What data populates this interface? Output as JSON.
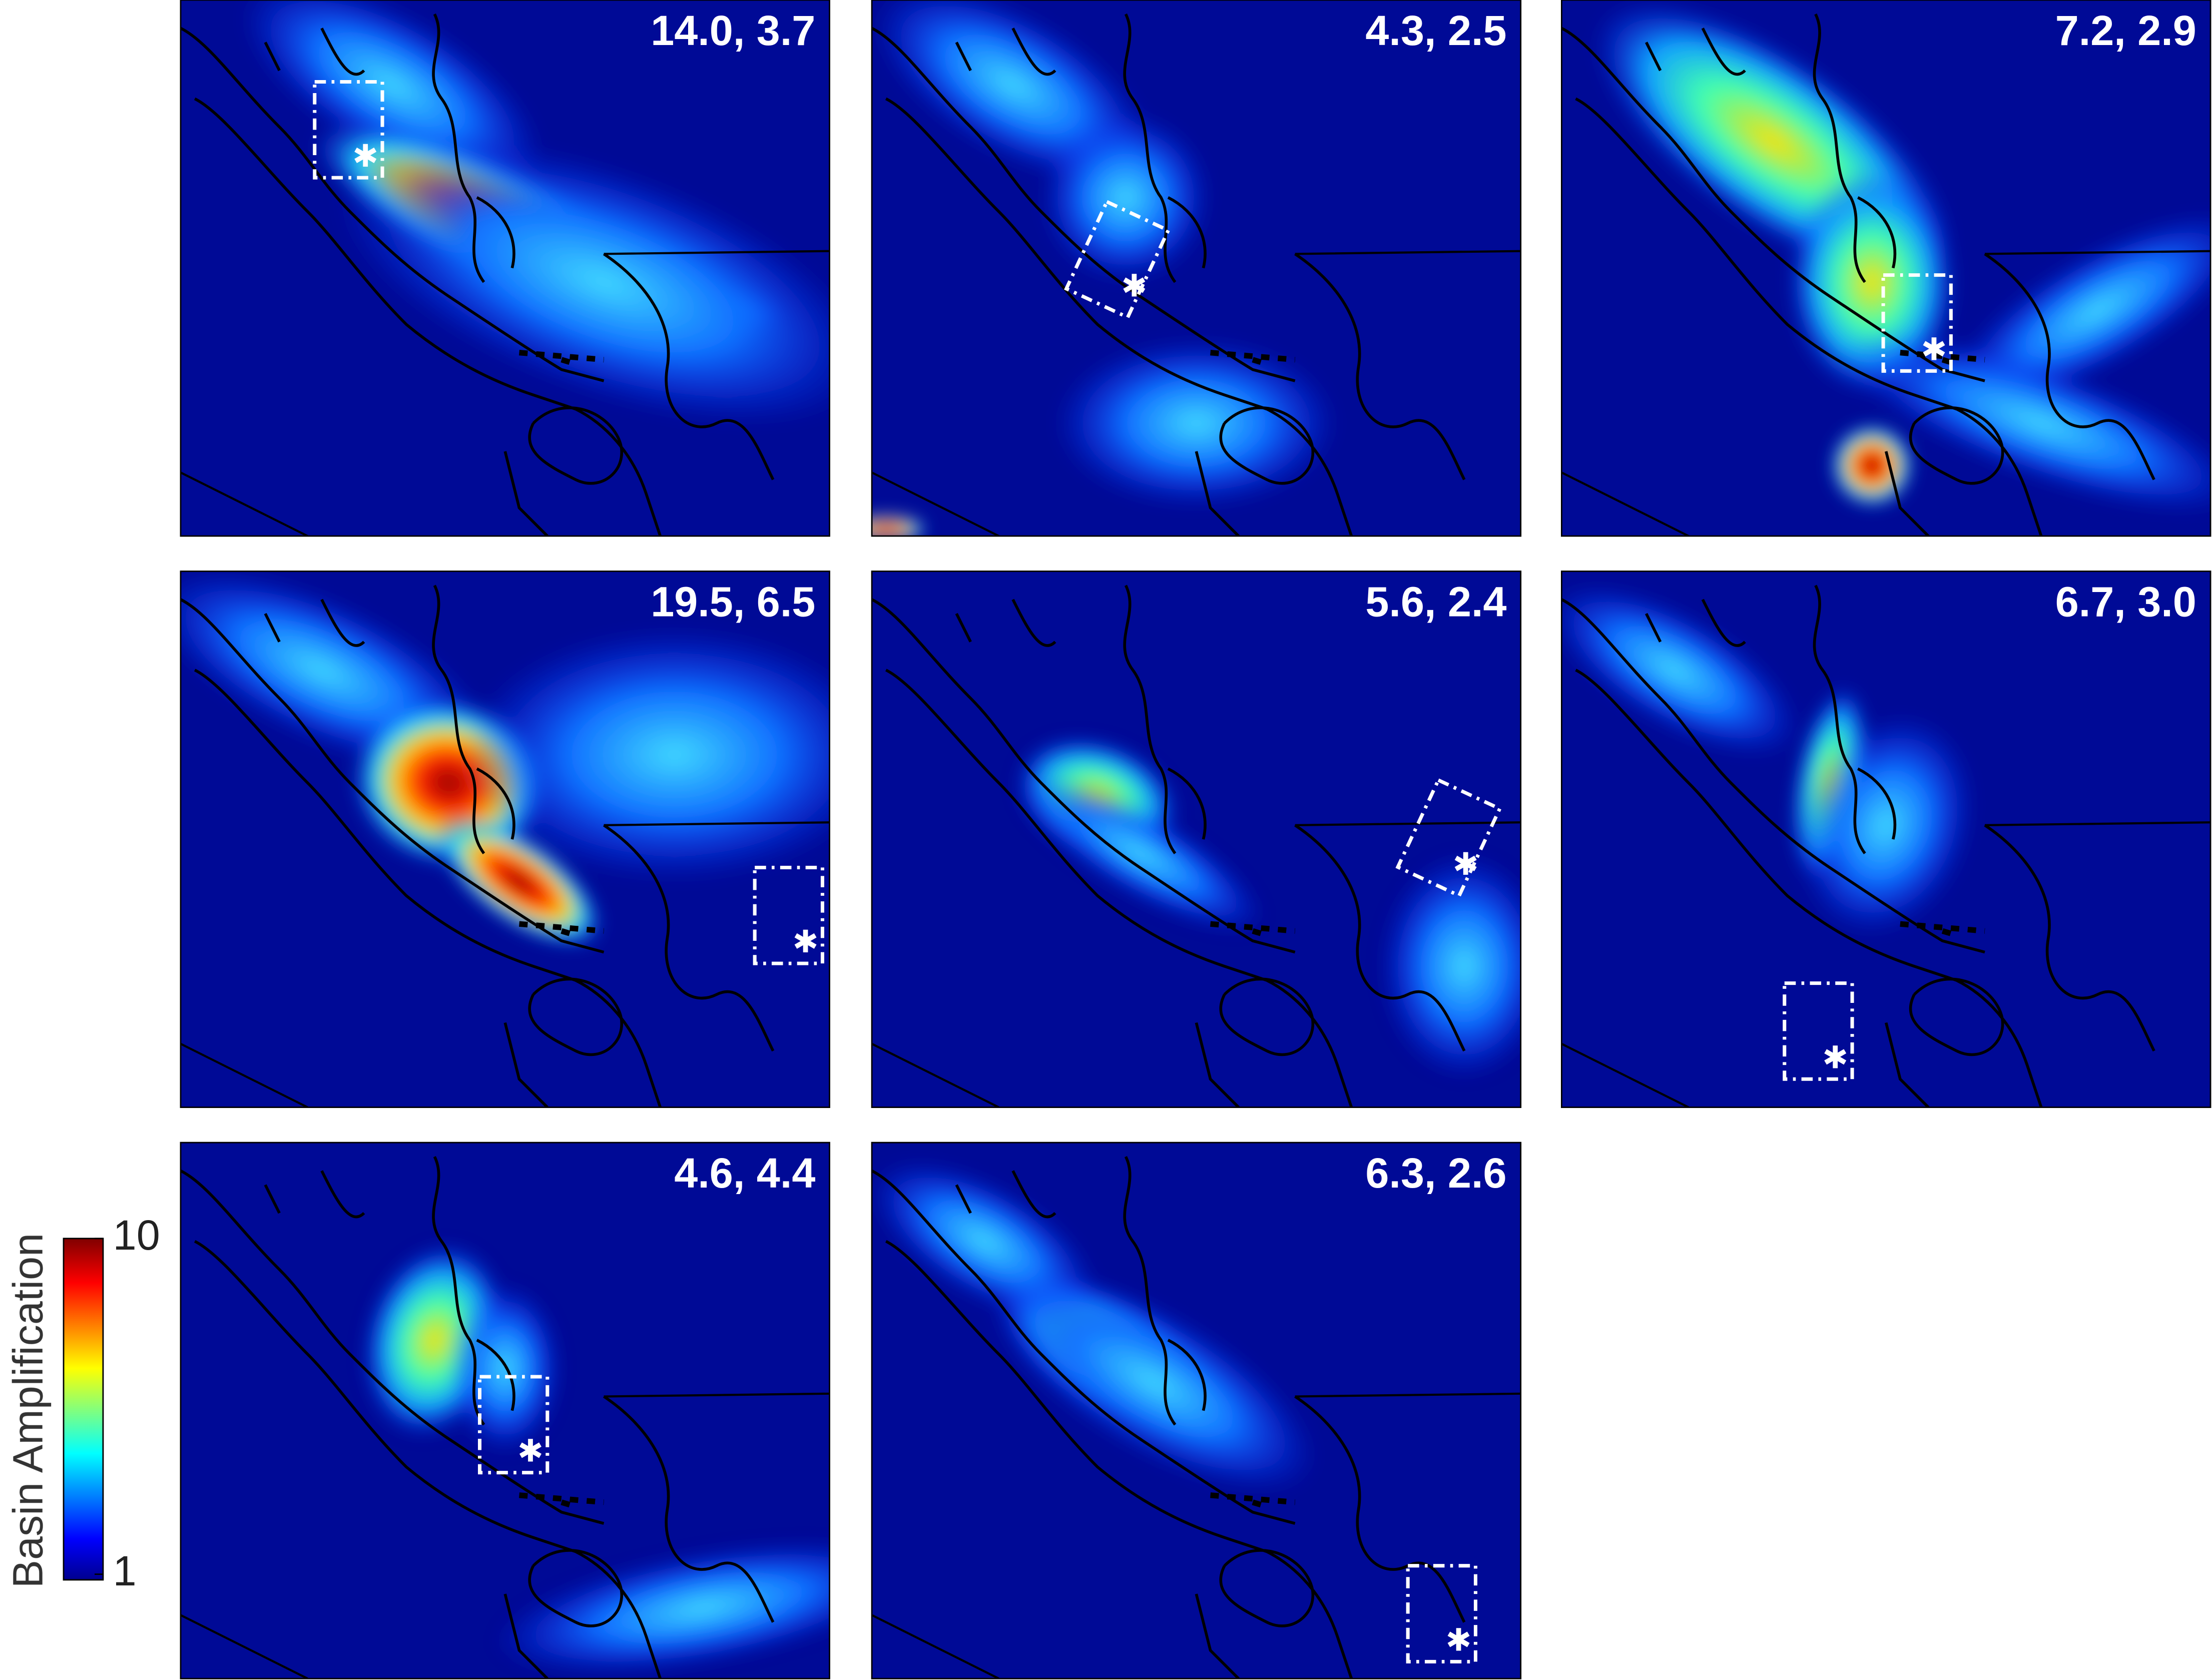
{
  "panels": [
    {
      "label": "14.0, 3.7"
    },
    {
      "label": "4.3, 2.5"
    },
    {
      "label": "7.2, 2.9"
    },
    {
      "label": "19.5, 6.5"
    },
    {
      "label": "5.6, 2.4"
    },
    {
      "label": "6.7, 3.0"
    },
    {
      "label": "4.6, 4.4"
    },
    {
      "label": "6.3, 2.6"
    }
  ],
  "colorbar": {
    "label": "Basin Amplification",
    "lim": [
      1,
      10
    ],
    "ticks": [
      1,
      10
    ],
    "log_scale": true
  }
}
